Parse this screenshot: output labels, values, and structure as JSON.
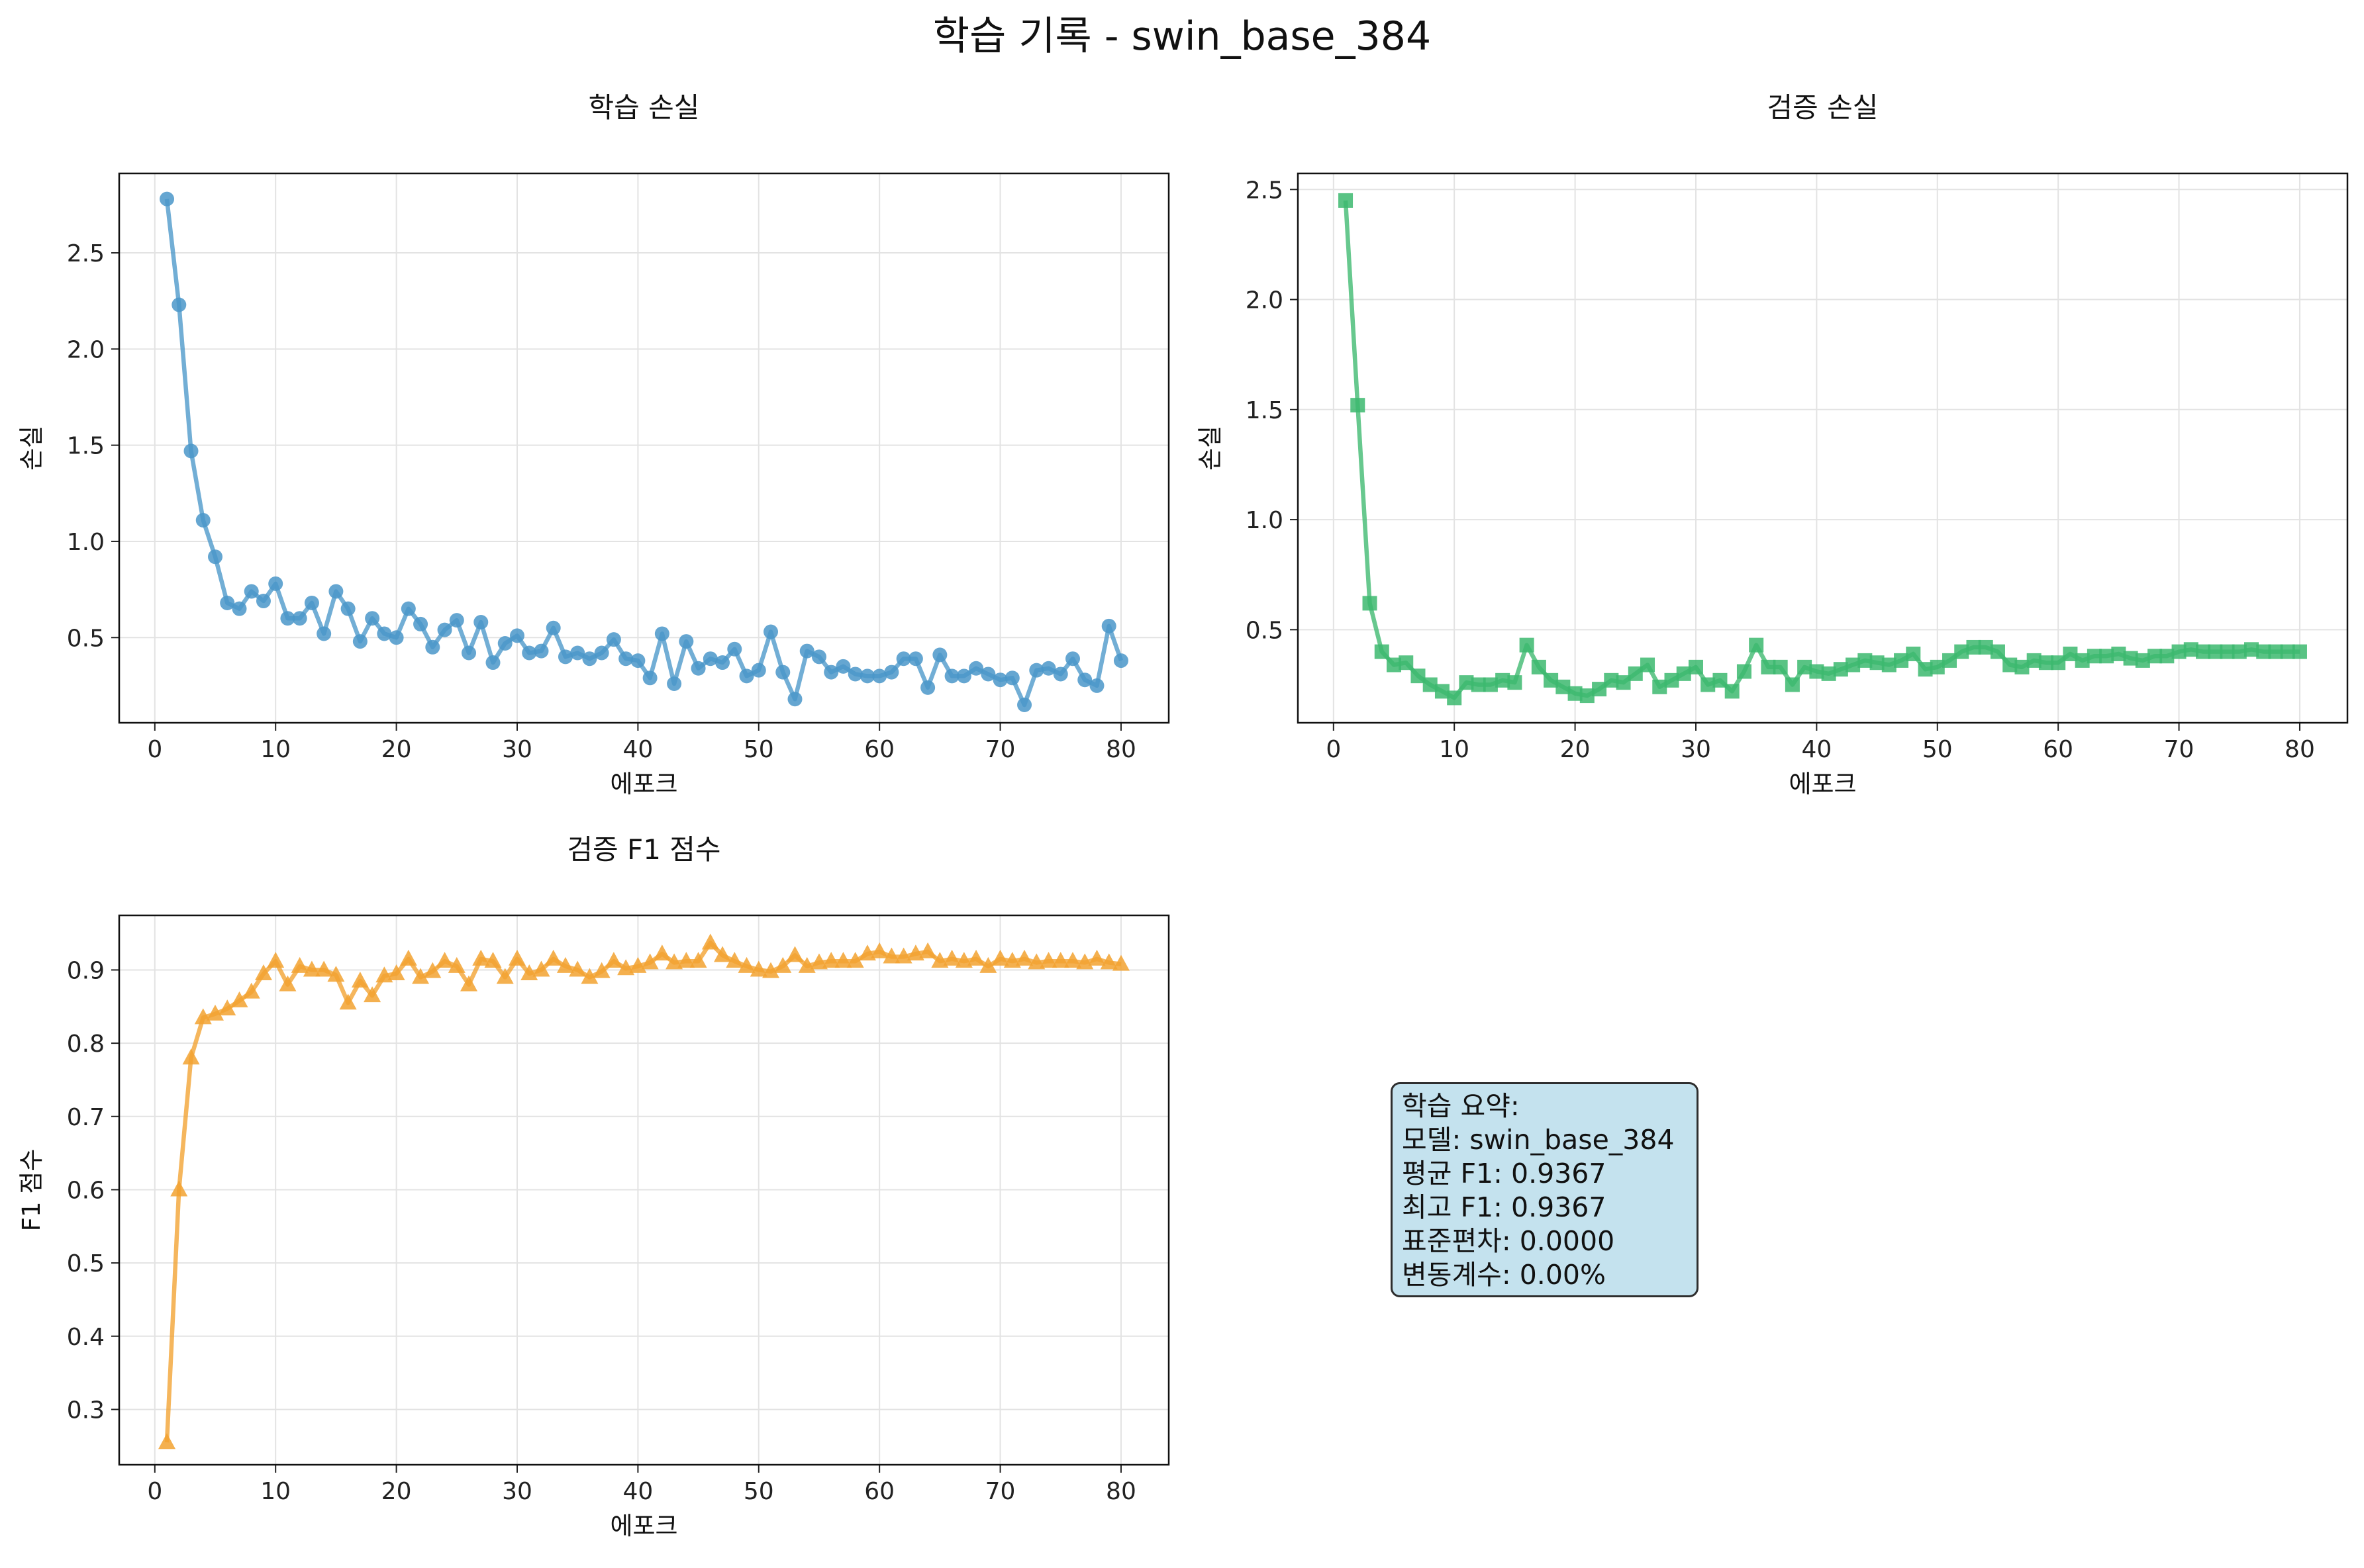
{
  "figure": {
    "title": "학습 기록 - swin_base_384"
  },
  "chart_data": [
    {
      "type": "line",
      "title": "학습 손실",
      "xlabel": "에포크",
      "ylabel": "손실",
      "xlim": [
        -2.95,
        83.95
      ],
      "ylim": [
        0.057,
        2.913
      ],
      "xticks": [
        0,
        10,
        20,
        30,
        40,
        50,
        60,
        70,
        80
      ],
      "xtick_labels": [
        "0",
        "10",
        "20",
        "30",
        "40",
        "50",
        "60",
        "70",
        "80"
      ],
      "yticks": [
        0.5,
        1.0,
        1.5,
        2.0,
        2.5
      ],
      "ytick_labels": [
        "0.5",
        "1.0",
        "1.5",
        "2.0",
        "2.5"
      ],
      "grid": true,
      "color": "#4a97c9",
      "marker": "circle",
      "series": [
        {
          "name": "학습 손실",
          "x": [
            1,
            2,
            3,
            4,
            5,
            6,
            7,
            8,
            9,
            10,
            11,
            12,
            13,
            14,
            15,
            16,
            17,
            18,
            19,
            20,
            21,
            22,
            23,
            24,
            25,
            26,
            27,
            28,
            29,
            30,
            31,
            32,
            33,
            34,
            35,
            36,
            37,
            38,
            39,
            40,
            41,
            42,
            43,
            44,
            45,
            46,
            47,
            48,
            49,
            50,
            51,
            52,
            53,
            54,
            55,
            56,
            57,
            58,
            59,
            60,
            61,
            62,
            63,
            64,
            65,
            66,
            67,
            68,
            69,
            70,
            71,
            72,
            73,
            74,
            75,
            76,
            77,
            78,
            79,
            80
          ],
          "values": [
            2.78,
            2.23,
            1.47,
            1.11,
            0.92,
            0.68,
            0.65,
            0.74,
            0.69,
            0.78,
            0.6,
            0.6,
            0.68,
            0.52,
            0.74,
            0.65,
            0.48,
            0.6,
            0.52,
            0.5,
            0.65,
            0.57,
            0.45,
            0.54,
            0.59,
            0.42,
            0.58,
            0.37,
            0.47,
            0.51,
            0.42,
            0.43,
            0.55,
            0.4,
            0.42,
            0.39,
            0.42,
            0.49,
            0.39,
            0.38,
            0.29,
            0.52,
            0.26,
            0.48,
            0.34,
            0.39,
            0.37,
            0.44,
            0.3,
            0.33,
            0.53,
            0.32,
            0.18,
            0.43,
            0.4,
            0.32,
            0.35,
            0.31,
            0.3,
            0.3,
            0.32,
            0.39,
            0.39,
            0.24,
            0.41,
            0.3,
            0.3,
            0.34,
            0.31,
            0.28,
            0.29,
            0.15,
            0.33,
            0.34,
            0.31,
            0.39,
            0.28,
            0.25,
            0.56,
            0.38
          ]
        }
      ]
    },
    {
      "type": "line",
      "title": "검증 손실",
      "xlabel": "에포크",
      "ylabel": "손실",
      "xlim": [
        -2.95,
        83.95
      ],
      "ylim": [
        0.077,
        2.573
      ],
      "xticks": [
        0,
        10,
        20,
        30,
        40,
        50,
        60,
        70,
        80
      ],
      "xtick_labels": [
        "0",
        "10",
        "20",
        "30",
        "40",
        "50",
        "60",
        "70",
        "80"
      ],
      "yticks": [
        0.5,
        1.0,
        1.5,
        2.0,
        2.5
      ],
      "ytick_labels": [
        "0.5",
        "1.0",
        "1.5",
        "2.0",
        "2.5"
      ],
      "grid": true,
      "color": "#3cb86e",
      "marker": "square",
      "series": [
        {
          "name": "검증 손실",
          "x": [
            1,
            2,
            3,
            4,
            5,
            6,
            7,
            8,
            9,
            10,
            11,
            12,
            13,
            14,
            15,
            16,
            17,
            18,
            19,
            20,
            21,
            22,
            23,
            24,
            25,
            26,
            27,
            28,
            29,
            30,
            31,
            32,
            33,
            34,
            35,
            36,
            37,
            38,
            39,
            40,
            41,
            42,
            43,
            44,
            45,
            46,
            47,
            48,
            49,
            50,
            51,
            52,
            53,
            54,
            55,
            56,
            57,
            58,
            59,
            60,
            61,
            62,
            63,
            64,
            65,
            66,
            67,
            68,
            69,
            70,
            71,
            72,
            73,
            74,
            75,
            76,
            77,
            78,
            79,
            80
          ],
          "values": [
            2.45,
            1.52,
            0.62,
            0.4,
            0.34,
            0.35,
            0.29,
            0.25,
            0.22,
            0.19,
            0.26,
            0.25,
            0.25,
            0.27,
            0.26,
            0.43,
            0.33,
            0.27,
            0.24,
            0.21,
            0.2,
            0.23,
            0.27,
            0.26,
            0.3,
            0.34,
            0.24,
            0.27,
            0.3,
            0.33,
            0.25,
            0.27,
            0.22,
            0.31,
            0.43,
            0.33,
            0.33,
            0.25,
            0.33,
            0.31,
            0.3,
            0.32,
            0.34,
            0.36,
            0.35,
            0.34,
            0.36,
            0.39,
            0.32,
            0.33,
            0.36,
            0.4,
            0.42,
            0.42,
            0.4,
            0.34,
            0.33,
            0.36,
            0.35,
            0.35,
            0.39,
            0.36,
            0.38,
            0.38,
            0.39,
            0.37,
            0.36,
            0.38,
            0.38,
            0.4,
            0.41,
            0.4,
            0.4,
            0.4,
            0.4,
            0.41,
            0.4,
            0.4,
            0.4,
            0.4
          ]
        }
      ]
    },
    {
      "type": "line",
      "title": "검증 F1 점수",
      "xlabel": "에포크",
      "ylabel": "F1 점수",
      "xlim": [
        -2.95,
        83.95
      ],
      "ylim": [
        0.2245,
        0.9745
      ],
      "xticks": [
        0,
        10,
        20,
        30,
        40,
        50,
        60,
        70,
        80
      ],
      "xtick_labels": [
        "0",
        "10",
        "20",
        "30",
        "40",
        "50",
        "60",
        "70",
        "80"
      ],
      "yticks": [
        0.3,
        0.4,
        0.5,
        0.6,
        0.7,
        0.8,
        0.9
      ],
      "ytick_labels": [
        "0.3",
        "0.4",
        "0.5",
        "0.6",
        "0.7",
        "0.8",
        "0.9"
      ],
      "grid": true,
      "color": "#f2a230",
      "marker": "triangle",
      "series": [
        {
          "name": "검증 F1 점수",
          "x": [
            1,
            2,
            3,
            4,
            5,
            6,
            7,
            8,
            9,
            10,
            11,
            12,
            13,
            14,
            15,
            16,
            17,
            18,
            19,
            20,
            21,
            22,
            23,
            24,
            25,
            26,
            27,
            28,
            29,
            30,
            31,
            32,
            33,
            34,
            35,
            36,
            37,
            38,
            39,
            40,
            41,
            42,
            43,
            44,
            45,
            46,
            47,
            48,
            49,
            50,
            51,
            52,
            53,
            54,
            55,
            56,
            57,
            58,
            59,
            60,
            61,
            62,
            63,
            64,
            65,
            66,
            67,
            68,
            69,
            70,
            71,
            72,
            73,
            74,
            75,
            76,
            77,
            78,
            79,
            80
          ],
          "values": [
            0.255,
            0.6,
            0.78,
            0.835,
            0.84,
            0.847,
            0.858,
            0.87,
            0.895,
            0.912,
            0.88,
            0.905,
            0.9,
            0.9,
            0.893,
            0.855,
            0.885,
            0.865,
            0.892,
            0.895,
            0.915,
            0.89,
            0.898,
            0.912,
            0.905,
            0.88,
            0.915,
            0.912,
            0.89,
            0.915,
            0.895,
            0.9,
            0.915,
            0.905,
            0.9,
            0.89,
            0.898,
            0.912,
            0.902,
            0.905,
            0.91,
            0.922,
            0.91,
            0.912,
            0.912,
            0.937,
            0.92,
            0.912,
            0.905,
            0.9,
            0.898,
            0.905,
            0.92,
            0.905,
            0.91,
            0.912,
            0.912,
            0.912,
            0.922,
            0.925,
            0.918,
            0.918,
            0.922,
            0.925,
            0.912,
            0.915,
            0.912,
            0.915,
            0.905,
            0.915,
            0.912,
            0.915,
            0.91,
            0.912,
            0.912,
            0.912,
            0.91,
            0.915,
            0.91,
            0.908
          ]
        }
      ]
    }
  ],
  "summary": {
    "lines": [
      "학습 요약:",
      "모델: swin_base_384",
      "평균 F1: 0.9367",
      "최고 F1: 0.9367",
      "표준편차: 0.0000",
      "변동계수: 0.00%"
    ]
  }
}
